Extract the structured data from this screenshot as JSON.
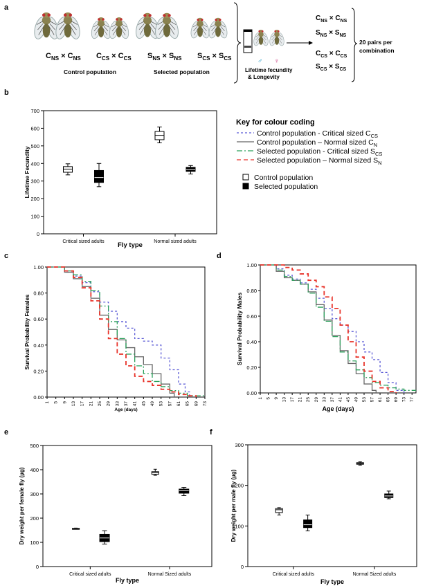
{
  "panels": {
    "a": {
      "letter": "a",
      "crosses": [
        {
          "left": "C",
          "left_sub": "NS",
          "right": "C",
          "right_sub": "NS"
        },
        {
          "left": "C",
          "left_sub": "CS",
          "right": "C",
          "right_sub": "CS"
        },
        {
          "left": "S",
          "left_sub": "NS",
          "right": "S",
          "right_sub": "NS"
        },
        {
          "left": "S",
          "left_sub": "CS",
          "right": "S",
          "right_sub": "CS"
        }
      ],
      "times": "×",
      "control_label": "Control population",
      "selected_label": "Selected population",
      "assay_label_line1": "Lifetime fecundity",
      "assay_label_line2": "& Longevity",
      "male_symbol": "♂",
      "female_symbol": "♀",
      "pairs_line1": "20 pairs per",
      "pairs_line2": "combination"
    },
    "b": {
      "letter": "b"
    },
    "c": {
      "letter": "c"
    },
    "d": {
      "letter": "d"
    },
    "e": {
      "letter": "e"
    },
    "f": {
      "letter": "f"
    }
  },
  "legend": {
    "title": "Key for colour coding",
    "lines": [
      {
        "text": "Control population - Critical sized C",
        "sub": "CS",
        "color": "#5b5bd6",
        "dash": "3,3"
      },
      {
        "text": "Control population – Normal sized C",
        "sub": "N",
        "color": "#666666",
        "dash": ""
      },
      {
        "text": "Selected population - Critical sized S",
        "sub": "CS",
        "color": "#2aa05a",
        "dash": "8,3,2,3"
      },
      {
        "text": "Selected population – Normal sized S",
        "sub": "N",
        "color": "#e8332a",
        "dash": "6,4"
      }
    ],
    "boxes": [
      {
        "text": "Control population",
        "fill": "#ffffff"
      },
      {
        "text": "Selected population",
        "fill": "#000000"
      }
    ]
  },
  "chart_data": [
    {
      "id": "b",
      "type": "box",
      "ylabel": "Lifetime Fecundity",
      "xlabel": "Fly type",
      "categories": [
        "Critical sized adults",
        "Normal sized adults"
      ],
      "ylim": [
        0,
        700
      ],
      "yticks": [
        0,
        100,
        200,
        300,
        400,
        500,
        600,
        700
      ],
      "boxes": [
        {
          "category": 0,
          "group": "Control population",
          "min": 335,
          "q1": 350,
          "median": 368,
          "q3": 382,
          "max": 398
        },
        {
          "category": 0,
          "group": "Selected population",
          "min": 268,
          "q1": 292,
          "median": 320,
          "q3": 360,
          "max": 400
        },
        {
          "category": 1,
          "group": "Control population",
          "min": 517,
          "q1": 535,
          "median": 560,
          "q3": 582,
          "max": 607
        },
        {
          "category": 1,
          "group": "Selected population",
          "min": 340,
          "q1": 355,
          "median": 365,
          "q3": 378,
          "max": 388
        }
      ]
    },
    {
      "id": "c",
      "type": "line",
      "ylabel": "Survival Probability Females",
      "xlabel": "Age (days)",
      "xticks": [
        1,
        5,
        9,
        13,
        17,
        21,
        25,
        29,
        33,
        37,
        41,
        45,
        49,
        53,
        57,
        61,
        65,
        69,
        73
      ],
      "yticks": [
        "0.00",
        "0.20",
        "0.40",
        "0.60",
        "0.80",
        "1.00"
      ],
      "xlim": [
        1,
        73
      ],
      "ylim": [
        0,
        1
      ],
      "series": [
        {
          "name": "Control population - Critical sized CCS",
          "x": [
            1,
            6,
            9,
            13,
            17,
            21,
            25,
            29,
            33,
            37,
            41,
            45,
            49,
            53,
            57,
            61,
            64,
            66
          ],
          "y": [
            1.0,
            1.0,
            0.96,
            0.93,
            0.88,
            0.81,
            0.73,
            0.66,
            0.58,
            0.53,
            0.45,
            0.43,
            0.4,
            0.3,
            0.21,
            0.1,
            0.04,
            0.0
          ]
        },
        {
          "name": "Control population – Normal sized CN",
          "x": [
            1,
            6,
            9,
            13,
            17,
            21,
            25,
            29,
            33,
            37,
            41,
            45,
            49,
            53,
            57,
            59
          ],
          "y": [
            1.0,
            1.0,
            0.96,
            0.91,
            0.85,
            0.76,
            0.63,
            0.52,
            0.44,
            0.38,
            0.31,
            0.25,
            0.18,
            0.1,
            0.03,
            0.0
          ]
        },
        {
          "name": "Selected population - Critical sized SCS",
          "x": [
            1,
            6,
            9,
            13,
            17,
            21,
            25,
            29,
            33,
            37,
            41,
            45,
            49,
            53,
            57,
            61,
            65,
            69,
            73
          ],
          "y": [
            1.0,
            1.0,
            0.97,
            0.94,
            0.89,
            0.82,
            0.7,
            0.58,
            0.45,
            0.33,
            0.24,
            0.18,
            0.12,
            0.08,
            0.05,
            0.03,
            0.01,
            0.01,
            0.01
          ]
        },
        {
          "name": "Selected population – Normal sized SN",
          "x": [
            1,
            6,
            9,
            13,
            17,
            21,
            25,
            29,
            33,
            37,
            41,
            45,
            49,
            53,
            57,
            61,
            65,
            69
          ],
          "y": [
            1.0,
            1.0,
            0.97,
            0.92,
            0.84,
            0.74,
            0.6,
            0.45,
            0.33,
            0.24,
            0.16,
            0.12,
            0.09,
            0.06,
            0.04,
            0.02,
            0.01,
            0.0
          ]
        }
      ]
    },
    {
      "id": "d",
      "type": "line",
      "ylabel": "Survival Probability Males",
      "xlabel": "Age (days)",
      "xticks": [
        1,
        5,
        9,
        13,
        17,
        21,
        25,
        29,
        33,
        37,
        41,
        45,
        49,
        53,
        57,
        61,
        65,
        69,
        73,
        77
      ],
      "yticks": [
        "0.00",
        "0.20",
        "0.40",
        "0.60",
        "0.80",
        "1.00"
      ],
      "xlim": [
        1,
        79
      ],
      "ylim": [
        0,
        1
      ],
      "series": [
        {
          "name": "Control population - Critical sized CCS",
          "x": [
            1,
            9,
            13,
            17,
            21,
            25,
            29,
            33,
            37,
            41,
            45,
            49,
            53,
            57,
            61,
            65,
            69,
            73
          ],
          "y": [
            1.0,
            0.97,
            0.92,
            0.89,
            0.86,
            0.81,
            0.74,
            0.66,
            0.58,
            0.53,
            0.48,
            0.4,
            0.32,
            0.26,
            0.16,
            0.08,
            0.02,
            0.0
          ]
        },
        {
          "name": "Control population – Normal sized CN",
          "x": [
            1,
            9,
            13,
            17,
            21,
            25,
            29,
            33,
            37,
            41,
            45,
            49,
            53,
            57,
            59
          ],
          "y": [
            1.0,
            0.95,
            0.9,
            0.88,
            0.85,
            0.79,
            0.69,
            0.57,
            0.45,
            0.33,
            0.23,
            0.15,
            0.07,
            0.02,
            0.0
          ]
        },
        {
          "name": "Selected population - Critical sized SCS",
          "x": [
            1,
            9,
            13,
            17,
            21,
            25,
            29,
            33,
            37,
            41,
            45,
            49,
            53,
            57,
            61,
            65,
            69,
            73,
            77,
            79
          ],
          "y": [
            1.0,
            0.96,
            0.91,
            0.88,
            0.85,
            0.78,
            0.67,
            0.56,
            0.44,
            0.32,
            0.25,
            0.18,
            0.12,
            0.08,
            0.06,
            0.04,
            0.03,
            0.02,
            0.02,
            0.02
          ]
        },
        {
          "name": "Selected population – Normal sized SN",
          "x": [
            1,
            9,
            13,
            17,
            21,
            25,
            29,
            33,
            37,
            41,
            45,
            49,
            53,
            57,
            61,
            65,
            69
          ],
          "y": [
            1.0,
            1.0,
            0.98,
            0.96,
            0.93,
            0.88,
            0.83,
            0.75,
            0.66,
            0.53,
            0.4,
            0.28,
            0.17,
            0.09,
            0.04,
            0.01,
            0.0
          ]
        }
      ]
    },
    {
      "id": "e",
      "type": "box",
      "ylabel": "Dry weight per female fly (µg)",
      "xlabel": "Fly type",
      "categories": [
        "Critical sized adults",
        "Normal Sized adults"
      ],
      "ylim": [
        0,
        500
      ],
      "yticks": [
        0,
        100,
        200,
        300,
        400,
        500
      ],
      "boxes": [
        {
          "category": 0,
          "group": "Control population",
          "min": 155,
          "q1": 156,
          "median": 157,
          "q3": 158,
          "max": 159
        },
        {
          "category": 0,
          "group": "Selected population",
          "min": 93,
          "q1": 103,
          "median": 118,
          "q3": 133,
          "max": 148
        },
        {
          "category": 1,
          "group": "Control population",
          "min": 377,
          "q1": 381,
          "median": 387,
          "q3": 392,
          "max": 402
        },
        {
          "category": 1,
          "group": "Selected population",
          "min": 293,
          "q1": 303,
          "median": 313,
          "q3": 320,
          "max": 327
        }
      ]
    },
    {
      "id": "f",
      "type": "box",
      "ylabel": "Dry weight per male fly (µg)",
      "xlabel": "Fly type",
      "categories": [
        "Critical sized adults",
        "Normal Sized adults"
      ],
      "ylim": [
        0,
        300
      ],
      "yticks": [
        0,
        100,
        200,
        300
      ],
      "boxes": [
        {
          "category": 0,
          "group": "Control population",
          "min": 127,
          "q1": 133,
          "median": 140,
          "q3": 143,
          "max": 145
        },
        {
          "category": 0,
          "group": "Selected population",
          "min": 88,
          "q1": 96,
          "median": 103,
          "q3": 115,
          "max": 127
        },
        {
          "category": 1,
          "group": "Control population",
          "min": 250,
          "q1": 252,
          "median": 254,
          "q3": 256,
          "max": 258
        },
        {
          "category": 1,
          "group": "Selected population",
          "min": 167,
          "q1": 170,
          "median": 174,
          "q3": 179,
          "max": 186
        }
      ]
    }
  ]
}
